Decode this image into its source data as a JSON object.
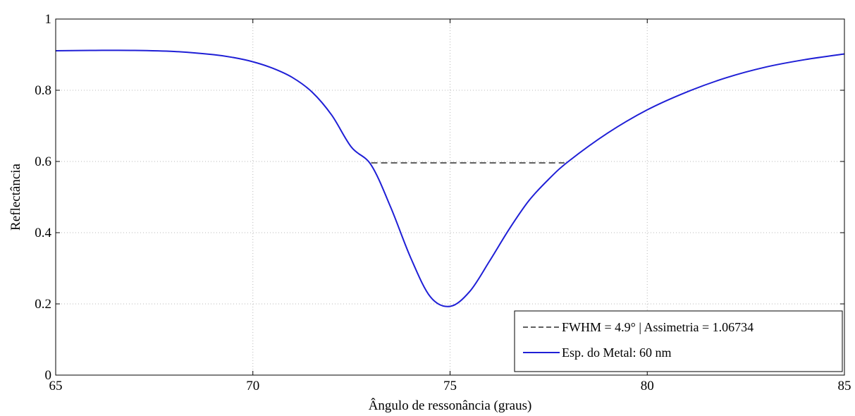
{
  "chart_data": {
    "type": "line",
    "title": "",
    "xlabel": "Ângulo de ressonância (graus)",
    "ylabel": "Reflectância",
    "xlim": [
      65,
      85
    ],
    "ylim": [
      0,
      1
    ],
    "xticks": [
      65,
      70,
      75,
      80,
      85
    ],
    "yticks": [
      0,
      0.2,
      0.4,
      0.6,
      0.8,
      1
    ],
    "xtick_labels": [
      "65",
      "70",
      "75",
      "80",
      "85"
    ],
    "ytick_labels": [
      "0",
      "0.2",
      "0.4",
      "0.6",
      "0.8",
      "1"
    ],
    "grid": true,
    "legend_position": "bottom-right",
    "series": [
      {
        "name": "FWHM = 4.9° | Assimetria = 1.06734",
        "style": "dashed",
        "color": "#000000",
        "x": [
          73.0,
          77.9
        ],
        "y": [
          0.596,
          0.596
        ]
      },
      {
        "name": "Esp. do Metal: 60 nm",
        "style": "solid",
        "color": "#1f1fd6",
        "x": [
          65.0,
          66.0,
          67.0,
          68.0,
          69.0,
          69.5,
          70.0,
          70.5,
          71.0,
          71.5,
          72.0,
          72.5,
          73.0,
          73.5,
          74.0,
          74.5,
          75.0,
          75.5,
          76.0,
          76.5,
          77.0,
          77.5,
          78.0,
          79.0,
          80.0,
          81.0,
          82.0,
          83.0,
          84.0,
          85.0
        ],
        "y": [
          0.911,
          0.912,
          0.912,
          0.909,
          0.9,
          0.892,
          0.88,
          0.862,
          0.836,
          0.795,
          0.73,
          0.64,
          0.59,
          0.47,
          0.33,
          0.22,
          0.193,
          0.235,
          0.32,
          0.41,
          0.49,
          0.55,
          0.6,
          0.68,
          0.745,
          0.795,
          0.835,
          0.865,
          0.886,
          0.902
        ]
      }
    ]
  }
}
